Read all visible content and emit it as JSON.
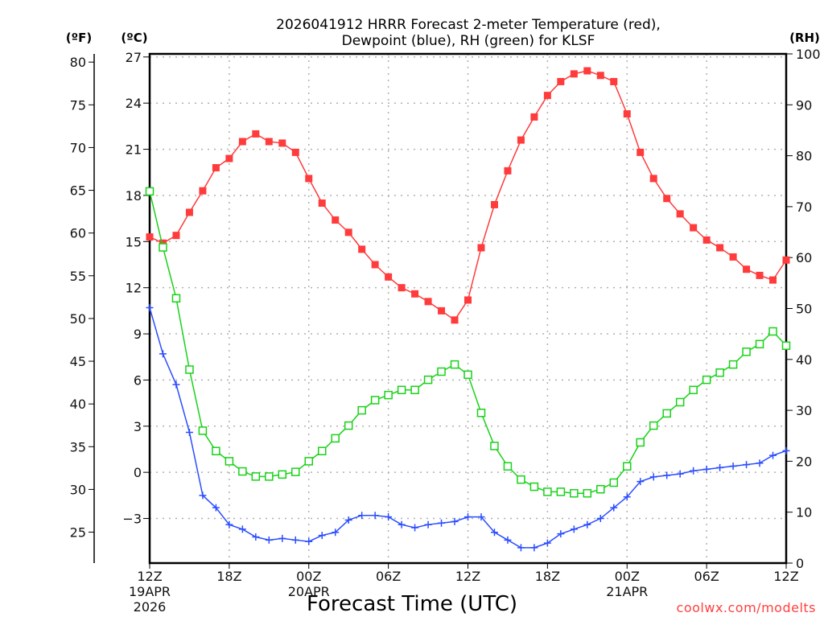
{
  "chart_data": {
    "type": "line",
    "title": [
      "2026041912 HRRR Forecast 2-meter Temperature (red),",
      "Dewpoint (blue), RH (green) for KLSF"
    ],
    "xlabel": "Forecast Time (UTC)",
    "watermark": "coolwx.com/modelts",
    "units": {
      "fahrenheit": "(ºF)",
      "celsius": "(ºC)",
      "rh": "(RH)"
    },
    "x_hours": [
      0,
      1,
      2,
      3,
      4,
      5,
      6,
      7,
      8,
      9,
      10,
      11,
      12,
      13,
      14,
      15,
      16,
      17,
      18,
      19,
      20,
      21,
      22,
      23,
      24,
      25,
      26,
      27,
      28,
      29,
      30,
      31,
      32,
      33,
      34,
      35,
      36,
      37,
      38,
      39,
      40,
      41,
      42,
      43,
      44,
      45,
      46,
      47,
      48
    ],
    "x_ticks": [
      {
        "hour": 0,
        "label": "12Z",
        "sub": [
          "19APR",
          "2026"
        ]
      },
      {
        "hour": 6,
        "label": "18Z",
        "sub": []
      },
      {
        "hour": 12,
        "label": "00Z",
        "sub": [
          "20APR"
        ]
      },
      {
        "hour": 18,
        "label": "06Z",
        "sub": []
      },
      {
        "hour": 24,
        "label": "12Z",
        "sub": []
      },
      {
        "hour": 30,
        "label": "18Z",
        "sub": []
      },
      {
        "hour": 36,
        "label": "00Z",
        "sub": [
          "21APR"
        ]
      },
      {
        "hour": 42,
        "label": "06Z",
        "sub": []
      },
      {
        "hour": 48,
        "label": "12Z",
        "sub": []
      }
    ],
    "ylim_celsius": [
      -5.9,
      27.2
    ],
    "yticks_celsius": [
      -3,
      0,
      3,
      6,
      9,
      12,
      15,
      18,
      21,
      24,
      27
    ],
    "yticks_celsius_labels": [
      "−3",
      "0",
      "3",
      "6",
      "9",
      "12",
      "15",
      "18",
      "21",
      "24",
      "27"
    ],
    "yticks_fahrenheit": [
      "25",
      "30",
      "35",
      "40",
      "45",
      "50",
      "55",
      "60",
      "65",
      "70",
      "75",
      "80"
    ],
    "ylim_rh": [
      0,
      100
    ],
    "yticks_rh": [
      "0",
      "10",
      "20",
      "30",
      "40",
      "50",
      "60",
      "70",
      "80",
      "90",
      "100"
    ],
    "series": [
      {
        "name": "Temperature",
        "axis": "celsius",
        "color": "#ff3b3b",
        "marker": "filled-square",
        "values": [
          15.3,
          14.9,
          15.4,
          16.9,
          18.3,
          19.8,
          20.4,
          21.5,
          22.0,
          21.5,
          21.4,
          20.8,
          19.1,
          17.5,
          16.4,
          15.6,
          14.5,
          13.5,
          12.7,
          12.0,
          11.6,
          11.1,
          10.5,
          9.9,
          11.2,
          14.6,
          17.4,
          19.6,
          21.6,
          23.1,
          24.5,
          25.4,
          25.9,
          26.1,
          25.8,
          25.4,
          23.3,
          20.8,
          19.1,
          17.8,
          16.8,
          15.9,
          15.1,
          14.6,
          14.0,
          13.2,
          12.8,
          12.5,
          13.8
        ]
      },
      {
        "name": "Dewpoint",
        "axis": "celsius",
        "color": "#2b4dff",
        "marker": "plus",
        "values": [
          10.7,
          7.7,
          5.7,
          2.6,
          -1.5,
          -2.3,
          -3.4,
          -3.7,
          -4.2,
          -4.4,
          -4.3,
          -4.4,
          -4.5,
          -4.1,
          -3.9,
          -3.1,
          -2.8,
          -2.8,
          -2.9,
          -3.4,
          -3.6,
          -3.4,
          -3.3,
          -3.2,
          -2.9,
          -2.9,
          -3.9,
          -4.4,
          -4.9,
          -4.9,
          -4.6,
          -4.0,
          -3.7,
          -3.4,
          -3.0,
          -2.3,
          -1.6,
          -0.6,
          -0.3,
          -0.2,
          -0.1,
          0.1,
          0.2,
          0.3,
          0.4,
          0.5,
          0.6,
          1.1,
          1.4
        ]
      },
      {
        "name": "RH",
        "axis": "rh",
        "color": "#19d219",
        "marker": "open-square",
        "values": [
          73,
          62,
          52,
          38,
          26,
          22,
          20,
          18,
          17,
          17,
          17.4,
          17.9,
          20,
          22,
          24.5,
          27,
          30,
          32,
          33,
          34,
          34,
          36,
          37.6,
          39,
          37,
          29.5,
          23,
          19,
          16.4,
          15,
          14,
          14,
          13.7,
          13.7,
          14.5,
          15.8,
          19,
          23.7,
          27,
          29.4,
          31.6,
          34,
          36,
          37.4,
          39,
          41.5,
          43,
          45.5,
          42.7
        ]
      }
    ]
  }
}
